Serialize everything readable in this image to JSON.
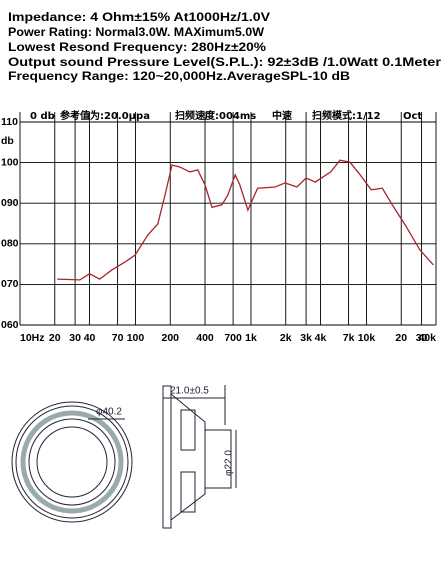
{
  "specs": [
    "Impedance: 4 Ohm±15%  At1000Hz/1.0V",
    "Power Rating: Normal3.0W. MAXimum5.0W",
    "Lowest Resond Frequency: 280Hz±20%",
    "Output sound Pressure Level(S.P.L.): 92±3dB /1.0Watt 0.1Meter",
    "Frequency Range: 120~20,000Hz.AverageSPL-10 dB"
  ],
  "chart_data": {
    "type": "line",
    "header": [
      "0 db",
      "参考值为:20.0μpa",
      "扫频速度:004ms",
      "中速",
      "扫频模式:1/12",
      "Oct"
    ],
    "y_label": "db",
    "log_x": true,
    "grid": true,
    "xlim": [
      10,
      40000
    ],
    "xticks": [
      {
        "value": 10,
        "label": "10Hz"
      },
      20,
      30,
      40,
      70,
      100,
      200,
      400,
      700,
      {
        "value": 1000,
        "label": "1k"
      },
      {
        "value": 2000,
        "label": "2k"
      },
      {
        "value": 3000,
        "label": "3k"
      },
      {
        "value": 4000,
        "label": "4k"
      },
      {
        "value": 7000,
        "label": "7k"
      },
      {
        "value": 10000,
        "label": "10k"
      },
      {
        "value": 20000,
        "label": "20"
      },
      {
        "value": 30000,
        "label": "30"
      },
      {
        "value": 40000,
        "label": "40k"
      }
    ],
    "ylim": [
      60,
      110
    ],
    "yticks": [
      110,
      100,
      {
        "value": 90,
        "label": "090"
      },
      {
        "value": 80,
        "label": "080"
      },
      {
        "value": 70,
        "label": "070"
      },
      {
        "value": 60,
        "label": "060"
      }
    ],
    "x": [
      21,
      33,
      40,
      49,
      62,
      81,
      99,
      128,
      156,
      180,
      207,
      243,
      296,
      346,
      400,
      460,
      560,
      630,
      730,
      800,
      940,
      1140,
      1620,
      1970,
      2500,
      3000,
      3600,
      4900,
      5900,
      7200,
      8800,
      11000,
      13700,
      16700,
      21700,
      29000,
      38000
    ],
    "series": [
      {
        "color": "#a8242c",
        "values": [
          71.3,
          71.1,
          72.6,
          71.3,
          73.5,
          75.5,
          77.2,
          82.2,
          84.9,
          92,
          99.4,
          98.9,
          97.7,
          98.2,
          94.5,
          89,
          89.6,
          92,
          97,
          94.5,
          88.3,
          93.7,
          94,
          95,
          94,
          96.2,
          95.2,
          97.7,
          100.6,
          100.1,
          97,
          93.3,
          93.7,
          89.6,
          84.6,
          78.5,
          74.8
        ]
      }
    ]
  },
  "drawing": {
    "outer_diameter": "φ40.2",
    "depth": "21.0±0.5",
    "magnet_diameter": "φ22.0"
  }
}
